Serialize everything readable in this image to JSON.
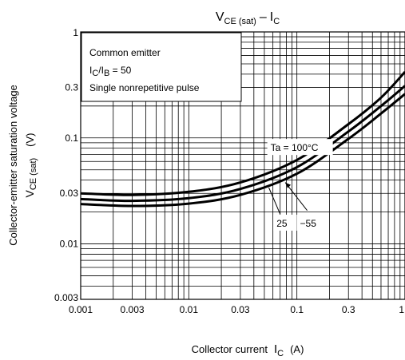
{
  "chart_data": {
    "type": "line",
    "title": {
      "main": "V",
      "main_sub": "CE (sat)",
      "dash": "–",
      "main2": "I",
      "main2_sub": "C"
    },
    "xlabel": {
      "text": "Collector current",
      "symbol": "I",
      "symbol_sub": "C",
      "unit": "(A)"
    },
    "ylabel": {
      "line1": "Collector-emitter saturation voltage",
      "symbol": "V",
      "symbol_sub": "CE  (sat)",
      "unit": "(V)"
    },
    "x_scale": "log",
    "y_scale": "log",
    "xlim": [
      0.001,
      1
    ],
    "ylim": [
      0.003,
      1
    ],
    "x_ticks": [
      {
        "value": 0.001,
        "label": "0.001"
      },
      {
        "value": 0.003,
        "label": "0.003"
      },
      {
        "value": 0.01,
        "label": "0.01"
      },
      {
        "value": 0.03,
        "label": "0.03"
      },
      {
        "value": 0.1,
        "label": "0.1"
      },
      {
        "value": 0.3,
        "label": "0.3"
      },
      {
        "value": 1,
        "label": "1"
      }
    ],
    "y_ticks": [
      {
        "value": 0.003,
        "label": "0.003"
      },
      {
        "value": 0.01,
        "label": "0.01"
      },
      {
        "value": 0.03,
        "label": "0.03"
      },
      {
        "value": 0.1,
        "label": "0.1"
      },
      {
        "value": 0.3,
        "label": "0.3"
      },
      {
        "value": 1,
        "label": "1"
      }
    ],
    "grid": true,
    "legend_box": {
      "line1": "Common emitter",
      "line2_a": "I",
      "line2_a_sub": "C",
      "line2_b": "/I",
      "line2_b_sub": "B",
      "line2_c": " = 50",
      "line3": "Single nonrepetitive pulse"
    },
    "series": [
      {
        "name": "Ta = 100°C",
        "x": [
          0.001,
          0.003,
          0.01,
          0.03,
          0.1,
          0.3,
          0.6,
          1
        ],
        "y": [
          0.03,
          0.029,
          0.031,
          0.038,
          0.062,
          0.135,
          0.24,
          0.42
        ]
      },
      {
        "name": "25",
        "x": [
          0.001,
          0.003,
          0.01,
          0.03,
          0.1,
          0.3,
          0.6,
          1
        ],
        "y": [
          0.0265,
          0.0255,
          0.027,
          0.033,
          0.053,
          0.115,
          0.2,
          0.31
        ]
      },
      {
        "name": "−55",
        "x": [
          0.001,
          0.003,
          0.01,
          0.03,
          0.1,
          0.3,
          0.6,
          1
        ],
        "y": [
          0.0238,
          0.0228,
          0.024,
          0.029,
          0.046,
          0.098,
          0.17,
          0.26
        ]
      }
    ],
    "annotations": [
      {
        "text": "Ta = 100°C",
        "series": 0
      },
      {
        "text": "25",
        "series": 1
      },
      {
        "text": "−55",
        "series": 2
      }
    ]
  }
}
